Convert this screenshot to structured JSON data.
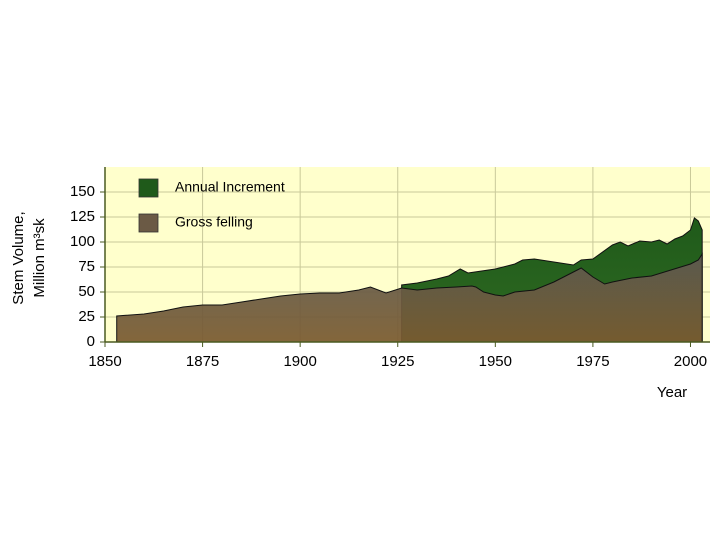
{
  "chart_data": {
    "type": "area",
    "xlabel": "Year",
    "ylabel": [
      "Stem Volume,",
      "Million  m³sk"
    ],
    "xlim": [
      1850,
      2005
    ],
    "xticks": [
      1850,
      1875,
      1900,
      1925,
      1950,
      1975,
      2000
    ],
    "ylim": [
      0,
      175
    ],
    "yticks": [
      0,
      25,
      50,
      75,
      100,
      125,
      150
    ],
    "grid": true,
    "legend": "upper left",
    "series": [
      {
        "name": "Annual Increment",
        "color": "#1f5a1a",
        "x": [
          1926,
          1930,
          1935,
          1938,
          1941,
          1943,
          1950,
          1955,
          1957,
          1960,
          1965,
          1970,
          1972,
          1975,
          1980,
          1982,
          1984,
          1987,
          1990,
          1992,
          1994,
          1996,
          1998,
          2000,
          2001,
          2002,
          2003
        ],
        "values": [
          57,
          59,
          63,
          66,
          73,
          69,
          73,
          78,
          82,
          83,
          80,
          77,
          82,
          83,
          97,
          100,
          96,
          101,
          100,
          102,
          98,
          103,
          106,
          112,
          124,
          121,
          112
        ]
      },
      {
        "name": "Gross felling",
        "color": "#6b5a45",
        "x": [
          1853,
          1860,
          1865,
          1870,
          1875,
          1880,
          1885,
          1890,
          1895,
          1900,
          1905,
          1910,
          1915,
          1918,
          1922,
          1926,
          1930,
          1935,
          1940,
          1944,
          1945,
          1947,
          1950,
          1952,
          1955,
          1960,
          1965,
          1970,
          1972,
          1975,
          1978,
          1980,
          1985,
          1990,
          1995,
          2000,
          2002,
          2003
        ],
        "values": [
          26,
          28,
          31,
          35,
          37,
          37,
          40,
          43,
          46,
          48,
          49,
          49,
          52,
          55,
          49,
          54,
          52,
          54,
          55,
          56,
          55,
          50,
          47,
          46,
          50,
          52,
          60,
          70,
          74,
          65,
          58,
          60,
          64,
          66,
          72,
          78,
          82,
          88
        ]
      }
    ]
  }
}
